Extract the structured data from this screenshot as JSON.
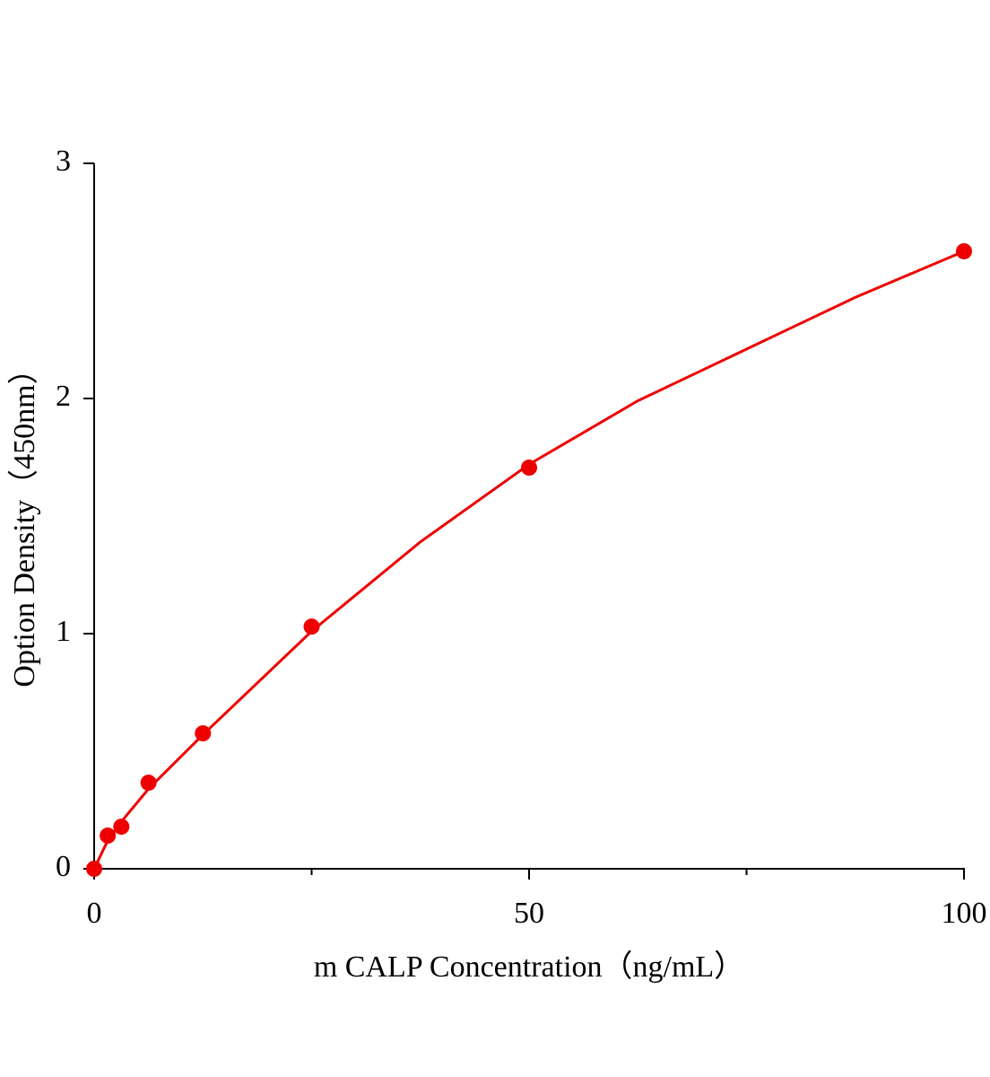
{
  "chart_data": {
    "type": "scatter",
    "x_label": "m CALP Concentration（ng/mL）",
    "y_label": "Option Density（450nm）",
    "x": [
      0,
      1.5625,
      3.125,
      6.25,
      12.5,
      25,
      50,
      100
    ],
    "values": [
      0,
      0.141,
      0.179,
      0.366,
      0.576,
      1.03,
      1.706,
      2.626
    ],
    "color": "#ee0000",
    "fit": {
      "x": [
        0,
        1.5625,
        3.125,
        6.25,
        12.5,
        25,
        37.5,
        50,
        62.5,
        75,
        87.5,
        100
      ],
      "values": [
        0,
        0.12,
        0.2,
        0.34,
        0.57,
        1.01,
        1.39,
        1.72,
        1.99,
        2.21,
        2.43,
        2.626
      ]
    },
    "xlim": [
      0,
      100
    ],
    "xticks": [
      0,
      50,
      100
    ],
    "xminor_ticks": [
      25,
      75
    ],
    "ylim": [
      0,
      3
    ],
    "yticks": [
      0,
      1,
      2,
      3
    ]
  }
}
